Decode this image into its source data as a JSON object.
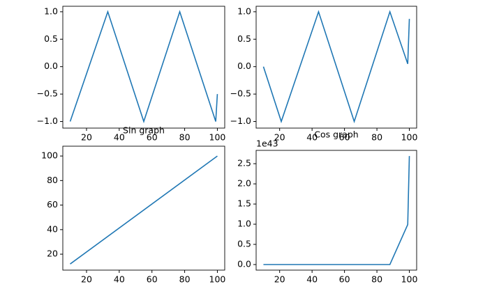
{
  "chart_data": [
    {
      "type": "line",
      "series": [
        {
          "color": "#1f77b4",
          "x": [
            10,
            33,
            55,
            77,
            99,
            100
          ],
          "values": [
            -1,
            1,
            -1,
            1,
            -1,
            -0.5
          ]
        }
      ],
      "xlim": [
        5.5,
        104.5
      ],
      "ylim": [
        -1.12,
        1.1
      ],
      "xticks": [
        20,
        40,
        60,
        80,
        100
      ],
      "yticks": [
        {
          "value": 1,
          "label": "1.0"
        },
        {
          "value": 0.5,
          "label": "0.5"
        },
        {
          "value": 0,
          "label": "0.0"
        },
        {
          "value": -0.5,
          "label": "−0.5"
        },
        {
          "value": -1,
          "label": "−1.0"
        }
      ]
    },
    {
      "type": "line",
      "series": [
        {
          "color": "#1f77b4",
          "x": [
            10,
            21,
            44,
            66,
            88,
            99,
            100
          ],
          "values": [
            0,
            -1,
            1,
            -1,
            1,
            0.05,
            0.87
          ]
        }
      ],
      "xlim": [
        5.5,
        104.5
      ],
      "ylim": [
        -1.12,
        1.1
      ],
      "xticks": [
        20,
        40,
        60,
        80,
        100
      ],
      "yticks": [
        {
          "value": 1,
          "label": "1.0"
        },
        {
          "value": 0.5,
          "label": "0.5"
        },
        {
          "value": 0,
          "label": "0.0"
        },
        {
          "value": -0.5,
          "label": "−0.5"
        },
        {
          "value": -1,
          "label": "−1.0"
        }
      ]
    },
    {
      "type": "line",
      "title": "Sin graph",
      "series": [
        {
          "color": "#1f77b4",
          "x": [
            10,
            100
          ],
          "values": [
            12,
            100
          ]
        }
      ],
      "xlim": [
        5.5,
        104.5
      ],
      "ylim": [
        7,
        108
      ],
      "xticks": [
        20,
        40,
        60,
        80,
        100
      ],
      "yticks": [
        20,
        40,
        60,
        80,
        100
      ]
    },
    {
      "type": "line",
      "title": "Cos graph",
      "offset_label": "1e43",
      "series": [
        {
          "color": "#1f77b4",
          "x": [
            10,
            88,
            99,
            100
          ],
          "values": [
            0,
            0,
            0.99,
            2.69
          ]
        }
      ],
      "xlim": [
        5.5,
        104.5
      ],
      "ylim": [
        -0.138,
        2.83
      ],
      "xticks": [
        20,
        40,
        60,
        80,
        100
      ],
      "yticks": [
        {
          "value": 0,
          "label": "0.0"
        },
        0.5,
        {
          "value": 1,
          "label": "1.0"
        },
        1.5,
        {
          "value": 2,
          "label": "2.0"
        },
        2.5
      ]
    }
  ]
}
